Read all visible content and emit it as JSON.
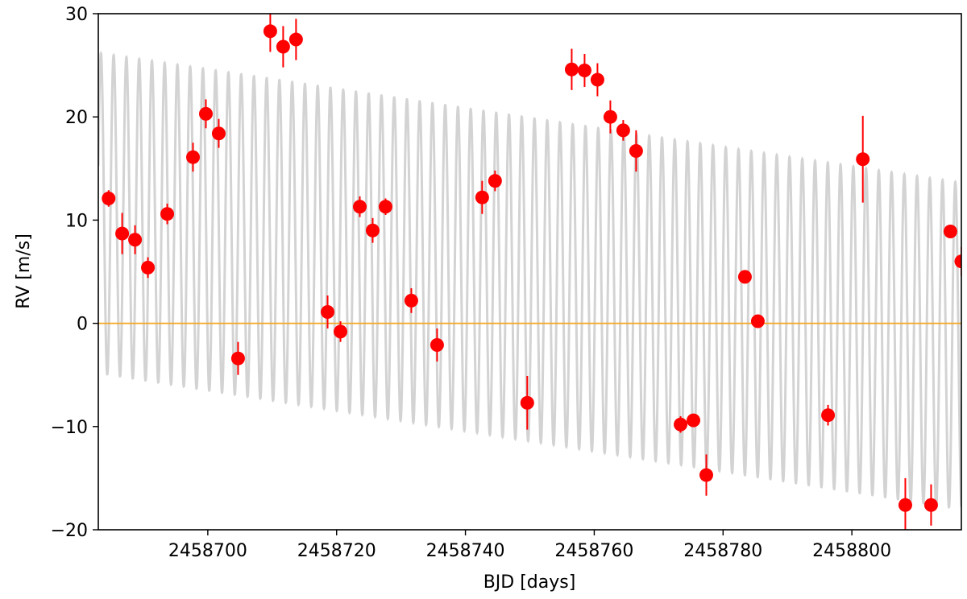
{
  "chart_data": {
    "type": "scatter",
    "xlabel": "BJD [days]",
    "ylabel": "RV [m/s]",
    "xlim": [
      2458683,
      2458817
    ],
    "ylim": [
      -20,
      30
    ],
    "x_ticks": [
      2458700,
      2458720,
      2458740,
      2458760,
      2458780,
      2458800
    ],
    "x_tick_labels": [
      "2458700",
      "2458720",
      "2458740",
      "2458760",
      "2458780",
      "2458800"
    ],
    "y_ticks": [
      -20,
      -10,
      0,
      10,
      20,
      30
    ],
    "y_tick_labels": [
      "−20",
      "−10",
      "0",
      "10",
      "20",
      "30"
    ],
    "grid": false,
    "zero_line": {
      "y": 0,
      "color": "#f5a623"
    },
    "model": {
      "color": "#d3d3d3",
      "period_days": 1.98,
      "center_start": 10.7,
      "center_end": -2.2,
      "amplitude_start": 15.5,
      "amplitude_end": 15.8
    },
    "series": [
      {
        "color": "#ff0000",
        "x": [
          2458684.6,
          2458686.7,
          2458688.7,
          2458690.7,
          2458693.7,
          2458697.7,
          2458699.7,
          2458701.7,
          2458704.7,
          2458709.7,
          2458711.7,
          2458713.7,
          2458718.6,
          2458720.6,
          2458723.6,
          2458725.6,
          2458727.6,
          2458731.6,
          2458735.6,
          2458742.6,
          2458744.6,
          2458749.6,
          2458756.5,
          2458758.5,
          2458760.5,
          2458762.5,
          2458764.5,
          2458766.5,
          2458773.4,
          2458775.4,
          2458777.4,
          2458783.4,
          2458785.4,
          2458796.3,
          2458801.7,
          2458808.3,
          2458812.3,
          2458815.3,
          2458817.0
        ],
        "y": [
          12.1,
          8.7,
          8.1,
          5.4,
          10.6,
          16.1,
          20.3,
          18.4,
          -3.4,
          28.3,
          26.8,
          27.5,
          1.1,
          -0.8,
          11.3,
          9.0,
          11.3,
          2.2,
          -2.1,
          12.2,
          13.8,
          -7.7,
          24.6,
          24.5,
          23.6,
          20.0,
          18.7,
          16.7,
          -9.8,
          -9.4,
          -14.7,
          4.5,
          0.2,
          -8.9,
          15.9,
          -17.6,
          -17.6,
          8.9,
          6.0
        ],
        "yerr": [
          0.8,
          2.0,
          1.4,
          1.0,
          1.0,
          1.4,
          1.4,
          1.4,
          1.6,
          2.0,
          2.0,
          2.0,
          1.6,
          1.0,
          1.0,
          1.2,
          0.8,
          1.2,
          1.6,
          1.6,
          1.0,
          2.6,
          2.0,
          1.6,
          1.6,
          1.6,
          1.0,
          2.0,
          0.8,
          0.6,
          2.0,
          0.6,
          0.6,
          1.0,
          4.2,
          2.6,
          2.0,
          0.6,
          1.4
        ]
      }
    ]
  }
}
